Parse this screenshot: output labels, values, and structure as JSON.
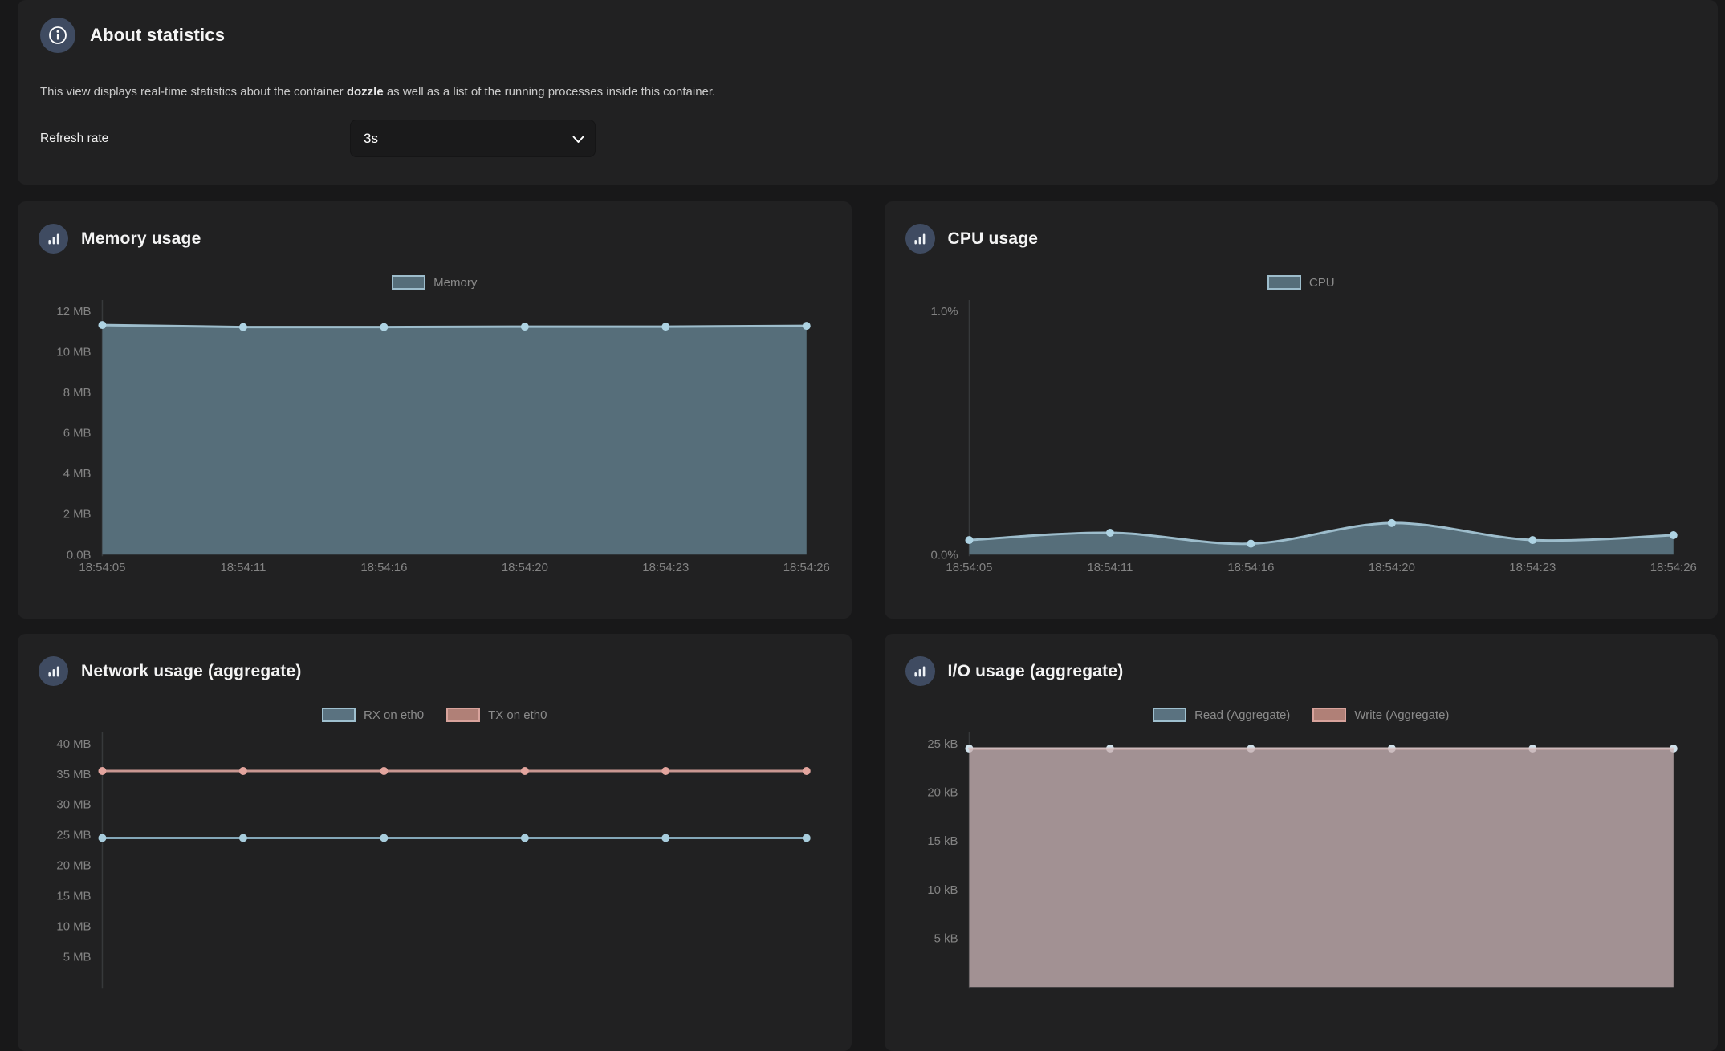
{
  "about": {
    "title": "About statistics",
    "description_before": "This view displays real-time statistics about the container ",
    "container_name": "dozzle",
    "description_after": " as well as a list of the running processes inside this container.",
    "refresh_label": "Refresh rate",
    "refresh_value": "3s"
  },
  "icons": {
    "info": "info-icon",
    "chart": "bar-chart-icon",
    "chevron": "chevron-down-icon"
  },
  "panels": [
    {
      "title": "Memory usage"
    },
    {
      "title": "CPU usage"
    },
    {
      "title": "Network usage (aggregate)"
    },
    {
      "title": "I/O usage (aggregate)"
    }
  ],
  "colors": {
    "page_background": "#181819",
    "panel_background": "#212122",
    "badge_background": "#3f4b61",
    "axis_text": "#838383",
    "series_blue_fill": "#566e7a",
    "series_blue_line": "#9dbdcc",
    "series_blue_marker": "#aed3e3",
    "series_salmon_line": "#c99791",
    "series_salmon_marker": "#e3a59e",
    "io_overlap_fill": "#8f8f94"
  },
  "chart_data": [
    {
      "type": "area",
      "title": "Memory usage",
      "smooth": false,
      "x_labels": [
        "18:54:05",
        "18:54:11",
        "18:54:16",
        "18:54:20",
        "18:54:23",
        "18:54:26"
      ],
      "ylim": [
        0,
        12
      ],
      "ylabel": "",
      "xlabel": "",
      "legend_position": "top-center",
      "yticks": [
        {
          "value": 12,
          "label": "12 MB"
        },
        {
          "value": 10,
          "label": "10 MB"
        },
        {
          "value": 8,
          "label": "8 MB"
        },
        {
          "value": 6,
          "label": "6 MB"
        },
        {
          "value": 4,
          "label": "4 MB"
        },
        {
          "value": 2,
          "label": "2 MB"
        },
        {
          "value": 0,
          "label": "0.0B"
        }
      ],
      "unit": "MB",
      "series": [
        {
          "name": "Memory",
          "values": [
            11.32,
            11.22,
            11.22,
            11.24,
            11.24,
            11.28
          ],
          "line": "#9dbdcc",
          "fill": "#566e7a",
          "marker": "#aed3e3",
          "swatch_fill": "#566e7a",
          "swatch_border": "#9dbdcc"
        }
      ]
    },
    {
      "type": "area",
      "title": "CPU usage",
      "smooth": true,
      "x_labels": [
        "18:54:05",
        "18:54:11",
        "18:54:16",
        "18:54:20",
        "18:54:23",
        "18:54:26"
      ],
      "ylim": [
        0,
        1
      ],
      "ylabel": "",
      "xlabel": "",
      "legend_position": "top-center",
      "yticks": [
        {
          "value": 1,
          "label": "1.0%"
        },
        {
          "value": 0,
          "label": "0.0%"
        }
      ],
      "unit": "%",
      "series": [
        {
          "name": "CPU",
          "values": [
            0.06,
            0.09,
            0.045,
            0.13,
            0.06,
            0.08
          ],
          "line": "#9dbdcc",
          "fill": "#566e7a",
          "marker": "#aed3e3",
          "swatch_fill": "#566e7a",
          "swatch_border": "#9dbdcc"
        }
      ]
    },
    {
      "type": "line",
      "title": "Network usage (aggregate)",
      "smooth": false,
      "x_labels": [],
      "ylim": [
        0,
        40
      ],
      "ylabel": "",
      "xlabel": "",
      "legend_position": "top-center",
      "yticks": [
        {
          "value": 40,
          "label": "40 MB"
        },
        {
          "value": 35,
          "label": "35 MB"
        },
        {
          "value": 30,
          "label": "30 MB"
        },
        {
          "value": 25,
          "label": "25 MB"
        },
        {
          "value": 20,
          "label": "20 MB"
        },
        {
          "value": 15,
          "label": "15 MB"
        },
        {
          "value": 10,
          "label": "10 MB"
        },
        {
          "value": 5,
          "label": "5 MB"
        }
      ],
      "unit": "MB",
      "series": [
        {
          "name": "RX on eth0",
          "values": [
            24.5,
            24.5,
            24.5,
            24.5,
            24.5,
            24.5
          ],
          "line": "#84a7b8",
          "fill": null,
          "marker": "#a8cddd",
          "swatch_fill": "#5a7280",
          "swatch_border": "#9fc0cf"
        },
        {
          "name": "TX on eth0",
          "values": [
            35.5,
            35.5,
            35.5,
            35.5,
            35.5,
            35.5
          ],
          "line": "#c99791",
          "fill": null,
          "marker": "#e3a59e",
          "swatch_fill": "#b08077",
          "swatch_border": "#d8a39c"
        }
      ]
    },
    {
      "type": "area",
      "title": "I/O usage (aggregate)",
      "smooth": false,
      "x_labels": [],
      "ylim": [
        0,
        25
      ],
      "ylabel": "",
      "xlabel": "",
      "legend_position": "top-center",
      "yticks": [
        {
          "value": 25,
          "label": "25 kB"
        },
        {
          "value": 20,
          "label": "20 kB"
        },
        {
          "value": 15,
          "label": "15 kB"
        },
        {
          "value": 10,
          "label": "10 kB"
        },
        {
          "value": 5,
          "label": "5 kB"
        }
      ],
      "unit": "kB",
      "series": [
        {
          "name": "Read (Aggregate)",
          "values": [
            24.5,
            24.5,
            24.5,
            24.5,
            24.5,
            24.5
          ],
          "line": "#b9c2c8",
          "fill": "#7d8a92",
          "marker": "#cfe0ea",
          "swatch_fill": "#5a7280",
          "swatch_border": "#9fc0cf"
        },
        {
          "name": "Write (Aggregate)",
          "values": [
            24.5,
            24.5,
            24.5,
            24.5,
            24.5,
            24.5
          ],
          "line": "rgba(222,178,174,0.55)",
          "fill": "rgba(199,151,147,0.5)",
          "marker": null,
          "swatch_fill": "#b08077",
          "swatch_border": "#d8a39c"
        }
      ]
    }
  ]
}
